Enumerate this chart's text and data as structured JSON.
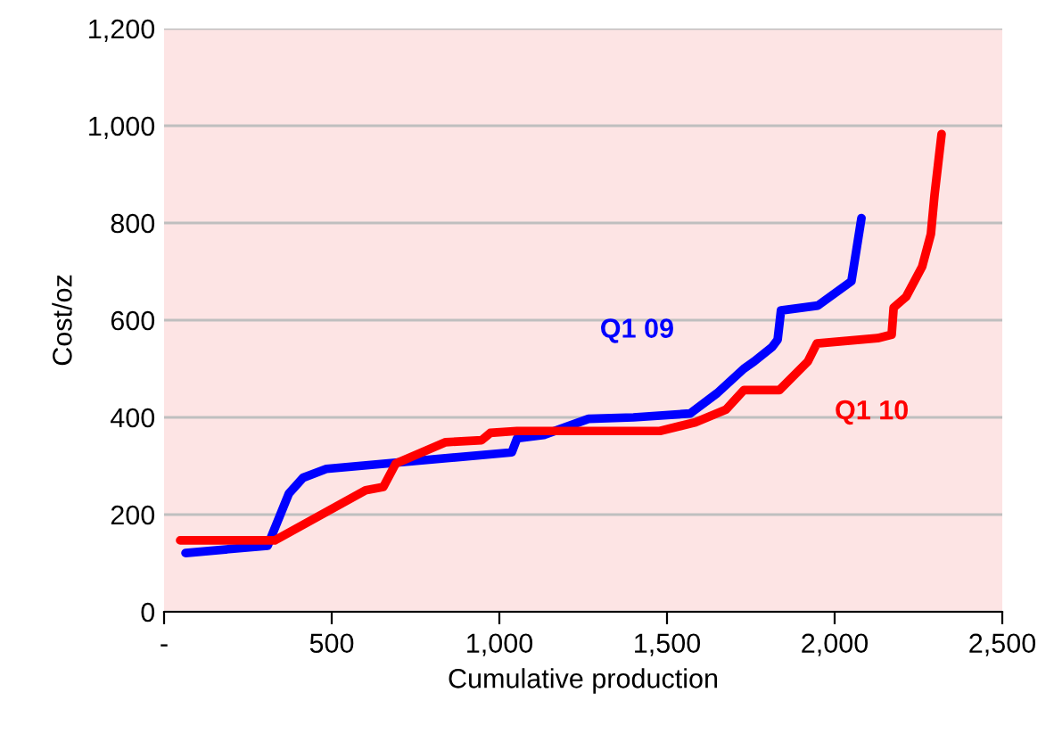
{
  "chart_data": {
    "type": "line",
    "xlabel": "Cumulative production",
    "ylabel": "Cost/oz",
    "xlim": [
      0,
      2500
    ],
    "ylim": [
      0,
      1200
    ],
    "xticks": [
      {
        "value": 0,
        "label": "-"
      },
      {
        "value": 500,
        "label": "500"
      },
      {
        "value": 1000,
        "label": "1,000"
      },
      {
        "value": 1500,
        "label": "1,500"
      },
      {
        "value": 2000,
        "label": "2,000"
      },
      {
        "value": 2500,
        "label": "2,500"
      }
    ],
    "yticks": [
      0,
      200,
      400,
      600,
      800,
      {
        "value": 1000,
        "label": "1,000"
      },
      {
        "value": 1200,
        "label": "1,200"
      }
    ],
    "grid": "y",
    "legend": false,
    "marker": "none",
    "line_style": "solid",
    "series": [
      {
        "name": "Q1 09",
        "color": "#0000ff",
        "x": [
          64,
          309,
          372,
          415,
          484,
          1037,
          1053,
          1133,
          1266,
          1400,
          1569,
          1650,
          1729,
          1760,
          1814,
          1830,
          1840,
          1950,
          2050,
          2080
        ],
        "values": [
          121,
          136,
          243,
          276,
          294,
          328,
          357,
          364,
          397,
          400,
          408,
          450,
          500,
          515,
          545,
          560,
          620,
          630,
          680,
          810
        ]
      },
      {
        "name": "Q1 10",
        "color": "#ff0000",
        "x": [
          48,
          330,
          601,
          654,
          691,
          840,
          947,
          973,
          1053,
          1479,
          1585,
          1676,
          1729,
          1835,
          1920,
          1947,
          2128,
          2170,
          2176,
          2213,
          2261,
          2287,
          2298,
          2319
        ],
        "values": [
          147,
          147,
          250,
          257,
          305,
          349,
          353,
          368,
          372,
          372,
          390,
          416,
          456,
          456,
          515,
          552,
          563,
          570,
          626,
          648,
          710,
          777,
          858,
          983
        ]
      }
    ]
  }
}
